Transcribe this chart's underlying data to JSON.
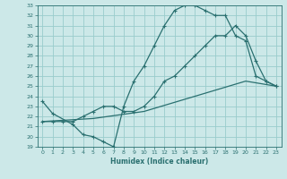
{
  "xlabel": "Humidex (Indice chaleur)",
  "bg_color": "#cce8e8",
  "grid_color": "#99cccc",
  "line_color": "#2a7070",
  "xlim": [
    -0.5,
    23.5
  ],
  "ylim": [
    19,
    33
  ],
  "xticks": [
    0,
    1,
    2,
    3,
    4,
    5,
    6,
    7,
    8,
    9,
    10,
    11,
    12,
    13,
    14,
    15,
    16,
    17,
    18,
    19,
    20,
    21,
    22,
    23
  ],
  "yticks": [
    19,
    20,
    21,
    22,
    23,
    24,
    25,
    26,
    27,
    28,
    29,
    30,
    31,
    32,
    33
  ],
  "line1_x": [
    0,
    1,
    3,
    4,
    5,
    6,
    7,
    8,
    9,
    10,
    11,
    12,
    13,
    14,
    15,
    16,
    17,
    18,
    19,
    20,
    21,
    22,
    23
  ],
  "line1_y": [
    23.5,
    22.3,
    21.2,
    20.2,
    20.0,
    19.5,
    19.0,
    23.0,
    25.5,
    27.0,
    29.0,
    31.0,
    32.5,
    33.0,
    33.0,
    32.5,
    32.0,
    32.0,
    30.0,
    29.5,
    26.0,
    25.5,
    25.0
  ],
  "line2_x": [
    0,
    1,
    2,
    3,
    4,
    5,
    6,
    7,
    8,
    9,
    10,
    11,
    12,
    13,
    14,
    15,
    16,
    17,
    18,
    19,
    20,
    21,
    22,
    23
  ],
  "line2_y": [
    21.5,
    21.5,
    21.5,
    21.5,
    22.0,
    22.5,
    23.0,
    23.0,
    22.5,
    22.5,
    23.0,
    24.0,
    25.5,
    26.0,
    27.0,
    28.0,
    29.0,
    30.0,
    30.0,
    31.0,
    30.0,
    27.5,
    25.5,
    25.0
  ],
  "line3_x": [
    0,
    5,
    10,
    15,
    20,
    23
  ],
  "line3_y": [
    21.5,
    21.8,
    22.5,
    24.0,
    25.5,
    25.0
  ]
}
